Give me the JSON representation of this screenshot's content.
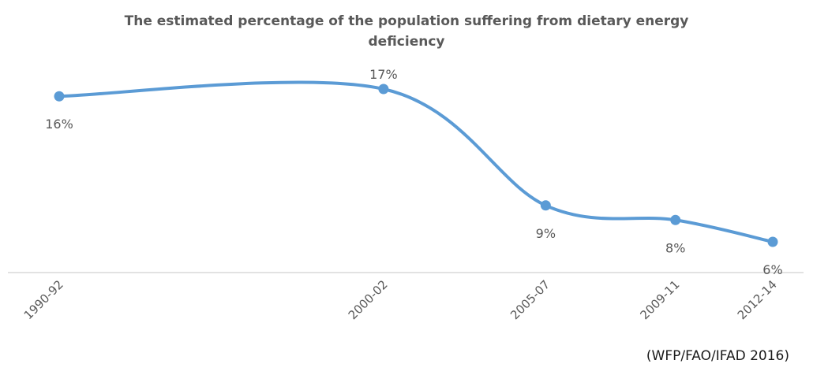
{
  "chart_data": {
    "type": "line",
    "title_line1": "The estimated percentage of the population suffering from dietary energy",
    "title_line2": "deficiency",
    "categories": [
      "1990-92",
      "2000-02",
      "2005-07",
      "2009-11",
      "2012-14"
    ],
    "x_years": [
      1991,
      2001,
      2006,
      2010,
      2013
    ],
    "values": [
      16.5,
      17,
      9,
      8,
      6.5
    ],
    "data_labels": [
      "16%",
      "17%",
      "9%",
      "8%",
      "6%"
    ],
    "label_position": [
      "below",
      "above",
      "below",
      "below",
      "below"
    ],
    "ylim": [
      4,
      22
    ],
    "smooth": true,
    "grid": false,
    "legend": "none",
    "line_color": "#5B9BD5",
    "axis_color": "#D9D9D9",
    "text_color": "#595959",
    "source": "(WFP/FAO/IFAD 2016)"
  }
}
